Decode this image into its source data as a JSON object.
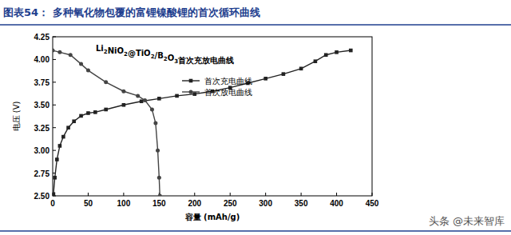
{
  "chart_data": {
    "type": "line",
    "title": "图表54： 多种氧化物包覆的富锂镍酸锂的首次循环曲线",
    "subtitle": "Li2NiO2@TiO2/B2O3首次充放电曲线",
    "x_label": "容量 (mAh/g)",
    "y_label": "电压 (V)",
    "annotations": [
      "头条 @未来智库"
    ],
    "xlim": [
      0,
      450
    ],
    "xticks": [
      0,
      50,
      100,
      150,
      200,
      250,
      300,
      350,
      400,
      450
    ],
    "ylim": [
      2.5,
      4.25
    ],
    "yticks": [
      {
        "value": 2.5,
        "label": "2.50"
      },
      2.75,
      {
        "value": 3,
        "label": "3.00"
      },
      3.25,
      {
        "value": 3.5,
        "label": "3.50"
      },
      3.75,
      {
        "value": 4,
        "label": "4.00"
      },
      4.25
    ],
    "grid": false,
    "legend": "upper-center",
    "series": [
      {
        "name": "首次充电曲线",
        "color": "#222222",
        "marker": "square",
        "line_style": "solid",
        "x": [
          1,
          3,
          6,
          10,
          15,
          22,
          30,
          40,
          50,
          60,
          75,
          100,
          125,
          150,
          175,
          200,
          225,
          250,
          275,
          300,
          325,
          350,
          370,
          385,
          400,
          420
        ],
        "values": [
          2.52,
          2.7,
          2.9,
          3.05,
          3.15,
          3.25,
          3.32,
          3.38,
          3.41,
          3.42,
          3.45,
          3.5,
          3.54,
          3.57,
          3.6,
          3.62,
          3.65,
          3.69,
          3.74,
          3.79,
          3.84,
          3.9,
          3.98,
          4.05,
          4.08,
          4.1
        ]
      },
      {
        "name": "首次放电曲线",
        "color": "#444444",
        "marker": "circle",
        "line_style": "solid",
        "x": [
          0,
          10,
          25,
          40,
          50,
          75,
          100,
          120,
          130,
          140,
          145,
          148,
          150,
          151
        ],
        "values": [
          4.1,
          4.08,
          4.05,
          3.95,
          3.88,
          3.75,
          3.65,
          3.6,
          3.55,
          3.45,
          3.3,
          3.0,
          2.7,
          2.5
        ]
      }
    ]
  }
}
